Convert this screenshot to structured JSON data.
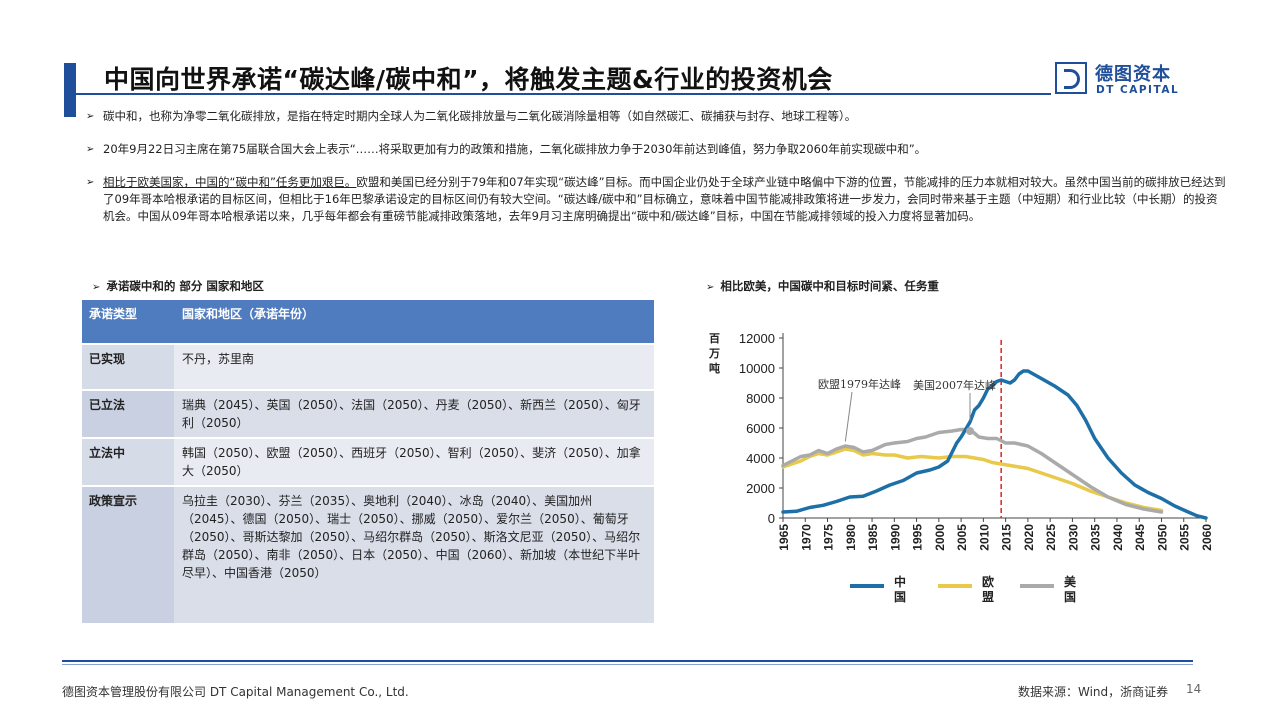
{
  "header": {
    "title": "中国向世界承诺“碳达峰/碳中和”，将触发主题&行业的投资机会",
    "logo_cn": "德图资本",
    "logo_en": "DT CAPITAL"
  },
  "bullets": [
    "碳中和，也称为净零二氧化碳排放，是指在特定时期内全球人为二氧化碳排放量与二氧化碳消除量相等（如自然碳汇、碳捕获与封存、地球工程等）。",
    "20年9月22日习主席在第75届联合国大会上表示“……将采取更加有力的政策和措施，二氧化碳排放力争于2030年前达到峰值，努力争取2060年前实现碳中和”。",
    {
      "underlined": "相比于欧美国家，中国的“碳中和”任务更加艰巨。",
      "rest": "欧盟和美国已经分别于79年和07年实现“碳达峰”目标。而中国企业仍处于全球产业链中略偏中下游的位置，节能减排的压力本就相对较大。虽然中国当前的碳排放已经达到了09年哥本哈根承诺的目标区间，但相比于16年巴黎承诺设定的目标区间仍有较大空间。“碳达峰/碳中和”目标确立，意味着中国节能减排政策将进一步发力，会同时带来基于主题（中短期）和行业比较（中长期）的投资机会。中国从09年哥本哈根承诺以来，几乎每年都会有重磅节能减排政策落地，去年9月习主席明确提出“碳中和/碳达峰”目标，中国在节能减排领域的投入力度将显著加码。"
    }
  ],
  "left_section": {
    "heading": "承诺碳中和的 部分 国家和地区",
    "table": {
      "headers": [
        "承诺类型",
        "国家和地区（承诺年份）"
      ],
      "rows": [
        {
          "type": "已实现",
          "countries": "不丹，苏里南"
        },
        {
          "type": "已立法",
          "countries": "瑞典（2045）、英国（2050）、法国（2050）、丹麦（2050）、新西兰（2050）、匈牙利（2050）"
        },
        {
          "type": "立法中",
          "countries": "韩国（2050）、欧盟（2050）、西班牙（2050）、智利（2050）、斐济（2050）、加拿大（2050）"
        },
        {
          "type": "政策宣示",
          "countries": "乌拉圭（2030）、芬兰（2035）、奥地利（2040）、冰岛（2040）、美国加州（2045）、德国（2050）、瑞士（2050）、挪威（2050）、爱尔兰（2050）、葡萄牙（2050）、哥斯达黎加（2050）、马绍尔群岛（2050）、斯洛文尼亚（2050）、马绍尔群岛（2050）、南非（2050）、日本（2050）、中国（2060）、新加坡（本世纪下半叶尽早）、中国香港（2050）"
        }
      ]
    }
  },
  "right_section": {
    "heading": "相比欧美，中国碳中和目标时间紧、任务重"
  },
  "chart_data": {
    "type": "line",
    "title": "",
    "xlabel": "",
    "ylabel": "百万吨",
    "xlim": [
      1965,
      2060
    ],
    "ylim": [
      0,
      12000
    ],
    "x_ticks": [
      1965,
      1970,
      1975,
      1980,
      1985,
      1990,
      1995,
      2000,
      2005,
      2010,
      2015,
      2020,
      2025,
      2030,
      2035,
      2040,
      2045,
      2050,
      2055,
      2060
    ],
    "y_ticks": [
      0,
      2000,
      4000,
      6000,
      8000,
      10000,
      12000
    ],
    "grid": false,
    "legend_position": "bottom",
    "vline_x": 2014,
    "annotations": [
      {
        "text": "欧盟1979年达峰",
        "x": 1979,
        "y": 4700
      },
      {
        "text": "美国2007年达峰",
        "x": 2007,
        "y": 5800
      }
    ],
    "series": [
      {
        "name": "中国",
        "color": "#1d6fa8",
        "x": [
          1965,
          1968,
          1971,
          1974,
          1977,
          1980,
          1983,
          1986,
          1989,
          1992,
          1995,
          1998,
          2000,
          2002,
          2004,
          2005,
          2006,
          2007,
          2008,
          2009,
          2010,
          2011,
          2012,
          2013,
          2014,
          2015,
          2016,
          2017,
          2018,
          2019,
          2020,
          2023,
          2026,
          2029,
          2031,
          2033,
          2035,
          2038,
          2041,
          2044,
          2047,
          2050,
          2053,
          2056,
          2058,
          2060
        ],
        "y": [
          400,
          450,
          700,
          850,
          1100,
          1400,
          1450,
          1800,
          2200,
          2500,
          3000,
          3200,
          3400,
          3800,
          5000,
          5400,
          5900,
          6400,
          7200,
          7500,
          8000,
          8600,
          8800,
          9100,
          9200,
          9100,
          9000,
          9200,
          9600,
          9800,
          9800,
          9300,
          8800,
          8200,
          7500,
          6500,
          5300,
          4000,
          3000,
          2200,
          1700,
          1300,
          800,
          400,
          150,
          0
        ]
      },
      {
        "name": "欧盟",
        "color": "#e8c94a",
        "x": [
          1965,
          1967,
          1969,
          1971,
          1973,
          1975,
          1977,
          1979,
          1981,
          1983,
          1985,
          1988,
          1990,
          1993,
          1996,
          2000,
          2003,
          2006,
          2008,
          2010,
          2012,
          2014,
          2016,
          2018,
          2020,
          2023,
          2026,
          2030,
          2034,
          2038,
          2042,
          2046,
          2050
        ],
        "y": [
          3400,
          3600,
          3800,
          4100,
          4300,
          4200,
          4400,
          4600,
          4500,
          4200,
          4300,
          4200,
          4200,
          4000,
          4100,
          4000,
          4100,
          4100,
          4000,
          3900,
          3700,
          3600,
          3500,
          3400,
          3300,
          3000,
          2700,
          2300,
          1800,
          1400,
          1000,
          700,
          500
        ]
      },
      {
        "name": "美国",
        "color": "#aaaaaa",
        "x": [
          1965,
          1967,
          1969,
          1971,
          1973,
          1975,
          1977,
          1979,
          1981,
          1983,
          1985,
          1988,
          1990,
          1993,
          1995,
          1997,
          2000,
          2003,
          2005,
          2007,
          2009,
          2011,
          2013,
          2015,
          2017,
          2020,
          2023,
          2026,
          2030,
          2034,
          2038,
          2042,
          2046,
          2050
        ],
        "y": [
          3500,
          3800,
          4100,
          4200,
          4500,
          4300,
          4600,
          4800,
          4700,
          4400,
          4500,
          4900,
          5000,
          5100,
          5300,
          5400,
          5700,
          5800,
          5900,
          5900,
          5400,
          5300,
          5300,
          5000,
          5000,
          4800,
          4300,
          3700,
          2900,
          2100,
          1400,
          900,
          600,
          400
        ]
      }
    ]
  },
  "footer": {
    "company": "德图资本管理股份有限公司  DT Capital Management  Co., Ltd.",
    "source": "数据来源：Wind，浙商证券",
    "page": "14"
  }
}
